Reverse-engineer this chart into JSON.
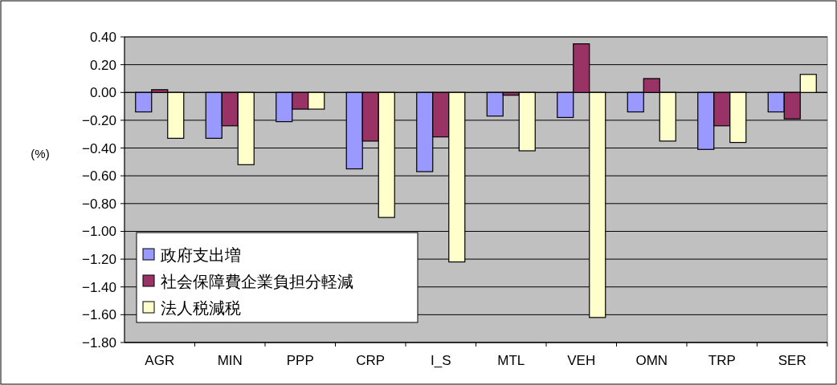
{
  "chart_data": {
    "type": "bar",
    "ylabel": "(%)",
    "categories": [
      "AGR",
      "MIN",
      "PPP",
      "CRP",
      "I_S",
      "MTL",
      "VEH",
      "OMN",
      "TRP",
      "SER"
    ],
    "series": [
      {
        "name": "政府支出増",
        "color": "#9999ff",
        "values": [
          -0.14,
          -0.33,
          -0.21,
          -0.55,
          -0.57,
          -0.17,
          -0.18,
          -0.14,
          -0.41,
          -0.14
        ]
      },
      {
        "name": "社会保障費企業負担分軽減",
        "color": "#993366",
        "values": [
          0.02,
          -0.24,
          -0.12,
          -0.35,
          -0.32,
          -0.02,
          0.35,
          0.1,
          -0.24,
          -0.19
        ]
      },
      {
        "name": "法人税減税",
        "color": "#ffffcc",
        "values": [
          -0.33,
          -0.52,
          -0.12,
          -0.9,
          -1.22,
          -0.42,
          -1.62,
          -0.35,
          -0.36,
          0.13
        ]
      }
    ],
    "ylim": [
      -1.8,
      0.4
    ],
    "yticks": [
      {
        "value": 0.4,
        "label": "0.40"
      },
      {
        "value": 0.2,
        "label": "0.20"
      },
      {
        "value": 0,
        "label": "0.00"
      },
      {
        "value": -0.2,
        "label": "−0.20"
      },
      {
        "value": -0.4,
        "label": "−0.40"
      },
      {
        "value": -0.6,
        "label": "−0.60"
      },
      {
        "value": -0.8,
        "label": "−0.80"
      },
      {
        "value": -1,
        "label": "−1.00"
      },
      {
        "value": -1.2,
        "label": "−1.20"
      },
      {
        "value": -1.4,
        "label": "−1.40"
      },
      {
        "value": -1.6,
        "label": "−1.60"
      },
      {
        "value": -1.8,
        "label": "−1.80"
      }
    ],
    "grid": "y",
    "legend": "bottom left"
  }
}
